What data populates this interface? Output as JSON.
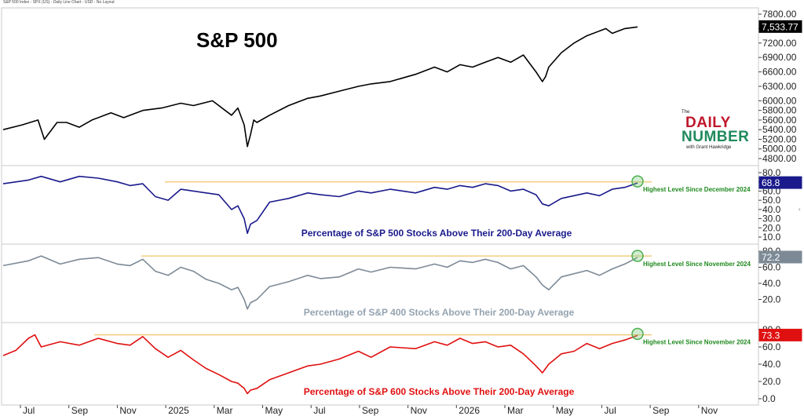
{
  "header_text": "S&P 500 Index - SPX (US) - Daily Line Chart - USD - No Layout",
  "logo": {
    "the": "The",
    "line1": "DAILY",
    "line2": "NUMBER",
    "byline": "with Grant Hawkridge"
  },
  "scroll_icon": "chevron-left-icon",
  "x_axis": {
    "labels": [
      "Jul",
      "Sep",
      "Nov",
      "2025",
      "Mar",
      "May",
      "Jul",
      "Sep",
      "Nov",
      "2026",
      "Mar",
      "May",
      "Jul",
      "Sep",
      "Nov"
    ]
  },
  "colors": {
    "spx": "#000000",
    "p500": "#1a1a8c",
    "p400": "#7d8a96",
    "p600": "#e01010",
    "hline": "#f2c36b",
    "highlight": "#4caf50",
    "note": "#1f8a1f"
  },
  "chart_data": [
    {
      "type": "line",
      "title": "S&P 500",
      "ylim": [
        4800,
        7800
      ],
      "yticks": [
        "7800.00",
        "7500.00",
        "7200.00",
        "6900.00",
        "6600.00",
        "6300.00",
        "6000.00",
        "5800.00",
        "5600.00",
        "5400.00",
        "5200.00",
        "5000.00",
        "4800.00"
      ],
      "tick_values": [
        7800,
        7500,
        7200,
        6900,
        6600,
        6300,
        6000,
        5800,
        5600,
        5400,
        5200,
        5000,
        4800
      ],
      "last_value": "7,533.77",
      "x": [
        0,
        0.03,
        0.055,
        0.065,
        0.085,
        0.1,
        0.12,
        0.14,
        0.16,
        0.17,
        0.19,
        0.22,
        0.25,
        0.28,
        0.3,
        0.33,
        0.36,
        0.37,
        0.38,
        0.385,
        0.39,
        0.395,
        0.4,
        0.42,
        0.45,
        0.48,
        0.5,
        0.53,
        0.56,
        0.58,
        0.61,
        0.65,
        0.68,
        0.7,
        0.72,
        0.74,
        0.76,
        0.78,
        0.8,
        0.82,
        0.84,
        0.85,
        0.855,
        0.86,
        0.88,
        0.9,
        0.92,
        0.94,
        0.95,
        0.96,
        0.98,
        1.0
      ],
      "y": [
        5400,
        5500,
        5600,
        5200,
        5550,
        5550,
        5450,
        5600,
        5700,
        5750,
        5650,
        5800,
        5850,
        5950,
        5900,
        6000,
        5700,
        5850,
        5500,
        5050,
        5300,
        5600,
        5550,
        5700,
        5900,
        6050,
        6100,
        6200,
        6300,
        6350,
        6400,
        6550,
        6700,
        6600,
        6750,
        6700,
        6800,
        6900,
        6800,
        6950,
        6600,
        6400,
        6500,
        6700,
        7000,
        7200,
        7350,
        7450,
        7500,
        7400,
        7500,
        7533.77
      ]
    },
    {
      "type": "line",
      "title": "Percentage of S&P 500 Stocks Above Their 200-Day Average",
      "ylim": [
        10,
        80
      ],
      "yticks": [
        "80.0",
        "70.0",
        "60.0",
        "50.0",
        "40.0",
        "30.0",
        "20.0",
        "10.0"
      ],
      "tick_values": [
        80,
        70,
        60,
        50,
        40,
        30,
        20,
        10
      ],
      "last_value": "68.8",
      "reference_level": 70,
      "annotation": "Highest Level Since December 2024",
      "x": [
        0,
        0.04,
        0.06,
        0.09,
        0.12,
        0.15,
        0.18,
        0.2,
        0.22,
        0.24,
        0.26,
        0.28,
        0.3,
        0.32,
        0.34,
        0.36,
        0.37,
        0.38,
        0.385,
        0.39,
        0.4,
        0.42,
        0.45,
        0.48,
        0.5,
        0.53,
        0.56,
        0.58,
        0.61,
        0.65,
        0.68,
        0.7,
        0.72,
        0.74,
        0.76,
        0.78,
        0.8,
        0.82,
        0.84,
        0.85,
        0.86,
        0.88,
        0.9,
        0.92,
        0.94,
        0.96,
        0.98,
        1.0
      ],
      "y": [
        68,
        72,
        76,
        70,
        76,
        74,
        70,
        66,
        68,
        54,
        50,
        62,
        60,
        58,
        56,
        40,
        44,
        30,
        14,
        24,
        28,
        48,
        52,
        58,
        56,
        54,
        60,
        58,
        62,
        58,
        64,
        62,
        66,
        64,
        68,
        66,
        60,
        62,
        56,
        46,
        44,
        52,
        55,
        58,
        55,
        62,
        64,
        68.8
      ]
    },
    {
      "type": "line",
      "title": "Percentage of S&P 400 Stocks Above Their 200-Day Average",
      "ylim": [
        0,
        80
      ],
      "yticks": [
        "80.0",
        "60.0",
        "40.0",
        "20.0"
      ],
      "tick_values": [
        80,
        60,
        40,
        20
      ],
      "last_value": "72.2",
      "reference_level": 74,
      "annotation": "Highest Level Since November 2024",
      "x": [
        0,
        0.04,
        0.06,
        0.09,
        0.12,
        0.15,
        0.18,
        0.2,
        0.22,
        0.24,
        0.26,
        0.28,
        0.3,
        0.32,
        0.34,
        0.36,
        0.37,
        0.38,
        0.385,
        0.39,
        0.4,
        0.42,
        0.45,
        0.48,
        0.5,
        0.53,
        0.56,
        0.58,
        0.61,
        0.65,
        0.68,
        0.7,
        0.72,
        0.74,
        0.76,
        0.78,
        0.8,
        0.82,
        0.84,
        0.85,
        0.86,
        0.88,
        0.9,
        0.92,
        0.94,
        0.96,
        0.98,
        1.0
      ],
      "y": [
        62,
        68,
        74,
        64,
        70,
        72,
        64,
        62,
        70,
        55,
        50,
        60,
        55,
        45,
        40,
        32,
        35,
        20,
        8,
        16,
        20,
        36,
        42,
        50,
        46,
        48,
        58,
        54,
        60,
        58,
        64,
        60,
        68,
        66,
        70,
        66,
        58,
        62,
        48,
        38,
        32,
        48,
        52,
        56,
        50,
        58,
        64,
        72.2
      ]
    },
    {
      "type": "line",
      "title": "Percentage of S&P 600 Stocks Above Their 200-Day Average",
      "ylim": [
        0,
        80
      ],
      "yticks": [
        "80.0",
        "60.0",
        "40.0",
        "20.0",
        "0.0"
      ],
      "tick_values": [
        80,
        60,
        40,
        20,
        0
      ],
      "last_value": "73.3",
      "reference_level": 74,
      "annotation": "Highest Level Since November 2024",
      "x": [
        0,
        0.02,
        0.04,
        0.05,
        0.06,
        0.09,
        0.12,
        0.15,
        0.18,
        0.2,
        0.22,
        0.24,
        0.26,
        0.28,
        0.3,
        0.32,
        0.34,
        0.36,
        0.37,
        0.38,
        0.385,
        0.39,
        0.4,
        0.42,
        0.45,
        0.48,
        0.5,
        0.53,
        0.56,
        0.58,
        0.61,
        0.65,
        0.68,
        0.7,
        0.72,
        0.74,
        0.76,
        0.78,
        0.8,
        0.82,
        0.84,
        0.85,
        0.86,
        0.88,
        0.9,
        0.92,
        0.94,
        0.96,
        0.98,
        1.0
      ],
      "y": [
        50,
        56,
        70,
        74,
        60,
        66,
        62,
        70,
        64,
        62,
        72,
        58,
        48,
        56,
        45,
        35,
        28,
        20,
        18,
        12,
        6,
        10,
        12,
        22,
        30,
        38,
        40,
        46,
        55,
        48,
        60,
        58,
        66,
        62,
        70,
        64,
        66,
        60,
        62,
        52,
        38,
        30,
        40,
        52,
        55,
        64,
        58,
        64,
        68,
        73.3
      ]
    }
  ]
}
